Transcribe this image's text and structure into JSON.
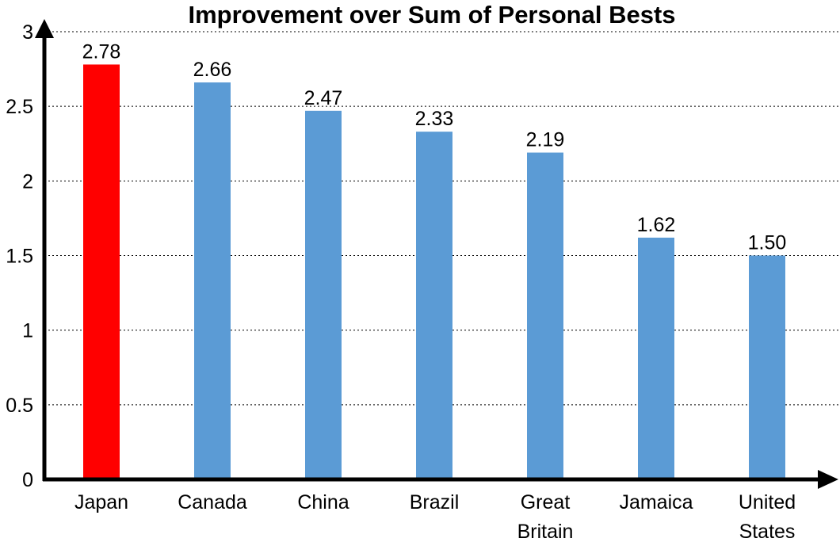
{
  "chart_data": {
    "type": "bar",
    "title": "Improvement over Sum of Personal Bests",
    "xlabel": "",
    "ylabel": "",
    "categories": [
      "Japan",
      "Canada",
      "China",
      "Brazil",
      "Great Britain",
      "Jamaica",
      "United States"
    ],
    "category_lines": [
      [
        "Japan"
      ],
      [
        "Canada"
      ],
      [
        "China"
      ],
      [
        "Brazil"
      ],
      [
        "Great",
        "Britain"
      ],
      [
        "Jamaica"
      ],
      [
        "United",
        "States"
      ]
    ],
    "values": [
      2.78,
      2.66,
      2.47,
      2.33,
      2.19,
      1.62,
      1.5
    ],
    "data_labels": [
      "2.78",
      "2.66",
      "2.47",
      "2.33",
      "2.19",
      "1.62",
      "1.50"
    ],
    "ylim": [
      0,
      3
    ],
    "yticks": [
      0,
      0.5,
      1,
      1.5,
      2,
      2.5,
      3
    ],
    "ytick_labels": [
      "0",
      "0.5",
      "1",
      "1.5",
      "2",
      "2.5",
      "3"
    ],
    "grid": "horizontal dotted",
    "legend": "none",
    "colors": {
      "highlight": "#ff0000",
      "bar": "#5b9bd5",
      "axis": "#000000"
    },
    "highlight_index": 0
  }
}
